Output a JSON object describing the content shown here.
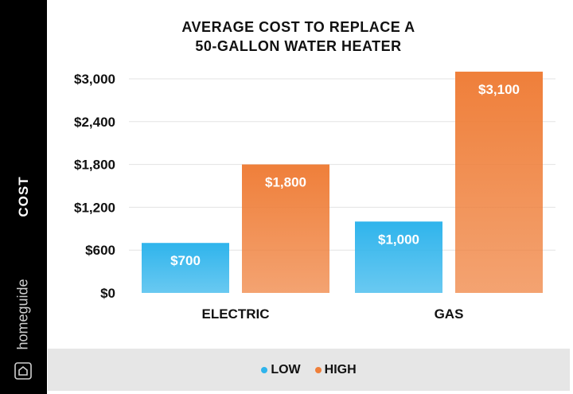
{
  "brand": {
    "name": "homeguide",
    "icon": "house-icon"
  },
  "chart_data": {
    "type": "bar",
    "title_lines": [
      "AVERAGE COST TO REPLACE A",
      "50-GALLON WATER HEATER"
    ],
    "ylabel": "COST",
    "xlabel": "",
    "categories": [
      "ELECTRIC",
      "GAS"
    ],
    "ylim": [
      0,
      3000
    ],
    "yticks": [
      0,
      600,
      1200,
      1800,
      2400,
      3000
    ],
    "ytick_labels": [
      "$0",
      "$600",
      "$1,200",
      "$1,800",
      "$2,400",
      "$3,000"
    ],
    "grid": true,
    "legend_position": "bottom",
    "series": [
      {
        "name": "LOW",
        "values": [
          700,
          1000
        ],
        "labels": [
          "$700",
          "$1,000"
        ],
        "color": "#2fb4ec"
      },
      {
        "name": "HIGH",
        "values": [
          1800,
          3100
        ],
        "labels": [
          "$1,800",
          "$3,100"
        ],
        "color": "#ef7f3a"
      }
    ]
  },
  "colors": {
    "sidebar": "#000000",
    "legend_background": "#e6e6e6"
  }
}
